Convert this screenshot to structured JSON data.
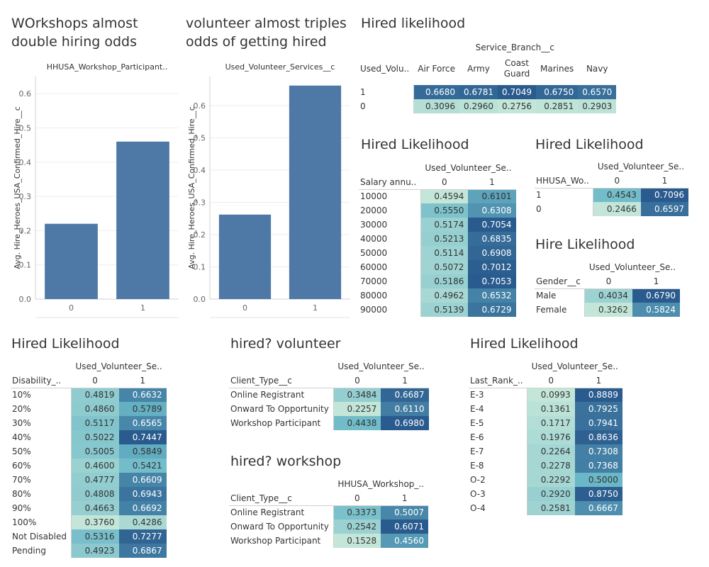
{
  "chart_data": [
    {
      "type": "bar",
      "panel_title": [
        "WOrkshops almost",
        "double hiring odds"
      ],
      "header": "HHUSA_Workshop_Participant..",
      "ylabel": "Avg. Hire_Heroes_USA_Confirmed_Hire__c",
      "categories": [
        "0",
        "1"
      ],
      "values": [
        0.22,
        0.46
      ],
      "yticks": [
        "0.0",
        "0.1",
        "0.2",
        "0.3",
        "0.4",
        "0.5",
        "0.6"
      ],
      "ylim": [
        0,
        0.65
      ],
      "color": "#4e79a7"
    },
    {
      "type": "bar",
      "panel_title": [
        "volunteer almost triples",
        "odds of getting hired"
      ],
      "header": "Used_Volunteer_Services__c",
      "ylabel": "Avg. Hire_Heroes_USA_Confirmed_Hire__c",
      "categories": [
        "0",
        "1"
      ],
      "values": [
        0.262,
        0.662
      ],
      "yticks": [
        "0.0",
        "0.1",
        "0.2",
        "0.3",
        "0.4",
        "0.5",
        "0.6"
      ],
      "ylim": [
        0,
        0.69
      ],
      "color": "#4e79a7"
    },
    {
      "type": "heatmap",
      "title": "Hired likelihood",
      "col_group": "Service_Branch__c",
      "row_header": "Used_Volu..",
      "columns": [
        "Air Force",
        "Army",
        "Coast Guard",
        "Marines",
        "Navy"
      ],
      "rows": [
        {
          "label": "1",
          "values": [
            "0.6680",
            "0.6781",
            "0.7049",
            "0.6750",
            "0.6570"
          ]
        },
        {
          "label": "0",
          "values": [
            "0.3096",
            "0.2960",
            "0.2756",
            "0.2851",
            "0.2903"
          ]
        }
      ]
    },
    {
      "type": "heatmap",
      "title": "Hired Likelihood",
      "col_group": "Used_Volunteer_Se..",
      "row_header": "Salary annu..",
      "columns": [
        "0",
        "1"
      ],
      "rows": [
        {
          "label": "10000",
          "values": [
            "0.4594",
            "0.6101"
          ]
        },
        {
          "label": "20000",
          "values": [
            "0.5550",
            "0.6308"
          ]
        },
        {
          "label": "30000",
          "values": [
            "0.5174",
            "0.7054"
          ]
        },
        {
          "label": "40000",
          "values": [
            "0.5213",
            "0.6835"
          ]
        },
        {
          "label": "50000",
          "values": [
            "0.5114",
            "0.6908"
          ]
        },
        {
          "label": "60000",
          "values": [
            "0.5072",
            "0.7012"
          ]
        },
        {
          "label": "70000",
          "values": [
            "0.5186",
            "0.7053"
          ]
        },
        {
          "label": "80000",
          "values": [
            "0.4962",
            "0.6532"
          ]
        },
        {
          "label": "90000",
          "values": [
            "0.5139",
            "0.6729"
          ]
        }
      ]
    },
    {
      "type": "heatmap",
      "title": "Hired Likelihood",
      "col_group": "Used_Volunteer_Se..",
      "row_header": "HHUSA_Wo..",
      "columns": [
        "0",
        "1"
      ],
      "rows": [
        {
          "label": "1",
          "values": [
            "0.4543",
            "0.7096"
          ]
        },
        {
          "label": "0",
          "values": [
            "0.2466",
            "0.6597"
          ]
        }
      ]
    },
    {
      "type": "heatmap",
      "title": "Hire Likelihood",
      "col_group": "Used_Volunteer_Se..",
      "row_header": "Gender__c",
      "columns": [
        "0",
        "1"
      ],
      "rows": [
        {
          "label": "Male",
          "values": [
            "0.4034",
            "0.6790"
          ]
        },
        {
          "label": "Female",
          "values": [
            "0.3262",
            "0.5824"
          ]
        }
      ]
    },
    {
      "type": "heatmap",
      "title": "Hired Likelihood",
      "col_group": "Used_Volunteer_Se..",
      "row_header": "Disability_..",
      "columns": [
        "0",
        "1"
      ],
      "rows": [
        {
          "label": "10%",
          "values": [
            "0.4819",
            "0.6632"
          ]
        },
        {
          "label": "20%",
          "values": [
            "0.4860",
            "0.5789"
          ]
        },
        {
          "label": "30%",
          "values": [
            "0.5117",
            "0.6565"
          ]
        },
        {
          "label": "40%",
          "values": [
            "0.5022",
            "0.7447"
          ]
        },
        {
          "label": "50%",
          "values": [
            "0.5005",
            "0.5849"
          ]
        },
        {
          "label": "60%",
          "values": [
            "0.4600",
            "0.5421"
          ]
        },
        {
          "label": "70%",
          "values": [
            "0.4777",
            "0.6609"
          ]
        },
        {
          "label": "80%",
          "values": [
            "0.4808",
            "0.6943"
          ]
        },
        {
          "label": "90%",
          "values": [
            "0.4663",
            "0.6692"
          ]
        },
        {
          "label": "100%",
          "values": [
            "0.3760",
            "0.4286"
          ]
        },
        {
          "label": "Not Disabled",
          "values": [
            "0.5316",
            "0.7277"
          ]
        },
        {
          "label": "Pending",
          "values": [
            "0.4923",
            "0.6867"
          ]
        }
      ]
    },
    {
      "type": "heatmap",
      "title": "hired? volunteer",
      "col_group": "Used_Volunteer_Se..",
      "row_header": "Client_Type__c",
      "columns": [
        "0",
        "1"
      ],
      "rows": [
        {
          "label": "Online Registrant",
          "values": [
            "0.3484",
            "0.6687"
          ]
        },
        {
          "label": "Onward To Opportunity",
          "values": [
            "0.2257",
            "0.6110"
          ]
        },
        {
          "label": "Workshop Participant",
          "values": [
            "0.4438",
            "0.6980"
          ]
        }
      ]
    },
    {
      "type": "heatmap",
      "title": "hired? workshop",
      "col_group": "HHUSA_Workshop_..",
      "row_header": "Client_Type__c",
      "columns": [
        "0",
        "1"
      ],
      "rows": [
        {
          "label": "Online Registrant",
          "values": [
            "0.3373",
            "0.5007"
          ]
        },
        {
          "label": "Onward To Opportunity",
          "values": [
            "0.2542",
            "0.6071"
          ]
        },
        {
          "label": "Workshop Participant",
          "values": [
            "0.1528",
            "0.4560"
          ]
        }
      ]
    },
    {
      "type": "heatmap",
      "title": "Hired Likelihood",
      "col_group": "Used_Volunteer_Se..",
      "row_header": "Last_Rank_..",
      "columns": [
        "0",
        "1"
      ],
      "rows": [
        {
          "label": "E-3",
          "values": [
            "0.0993",
            "0.8889"
          ]
        },
        {
          "label": "E-4",
          "values": [
            "0.1361",
            "0.7925"
          ]
        },
        {
          "label": "E-5",
          "values": [
            "0.1717",
            "0.7941"
          ]
        },
        {
          "label": "E-6",
          "values": [
            "0.1976",
            "0.8636"
          ]
        },
        {
          "label": "E-7",
          "values": [
            "0.2264",
            "0.7308"
          ]
        },
        {
          "label": "E-8",
          "values": [
            "0.2278",
            "0.7368"
          ]
        },
        {
          "label": "O-2",
          "values": [
            "0.2292",
            "0.5000"
          ]
        },
        {
          "label": "O-3",
          "values": [
            "0.2920",
            "0.8750"
          ]
        },
        {
          "label": "O-4",
          "values": [
            "0.2581",
            "0.6667"
          ]
        }
      ]
    }
  ],
  "colors": {
    "bar": "#4e79a7",
    "heat_low": "#c3e6d9",
    "heat_mid": "#6ab8c8",
    "heat_high": "#2a5b8e",
    "text": "#333333",
    "axis": "#666666",
    "grid": "#eeeeee"
  }
}
